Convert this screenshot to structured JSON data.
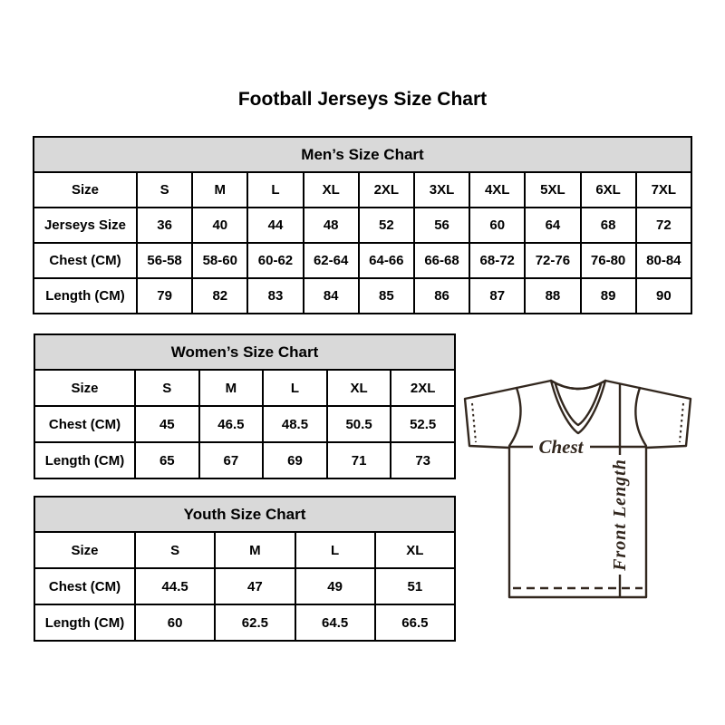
{
  "page": {
    "title": "Football Jerseys Size Chart"
  },
  "tables": [
    {
      "header": "Men’s Size Chart",
      "rows": [
        [
          "Size",
          "S",
          "M",
          "L",
          "XL",
          "2XL",
          "3XL",
          "4XL",
          "5XL",
          "6XL",
          "7XL"
        ],
        [
          "Jerseys Size",
          "36",
          "40",
          "44",
          "48",
          "52",
          "56",
          "60",
          "64",
          "68",
          "72"
        ],
        [
          "Chest (CM)",
          "56-58",
          "58-60",
          "60-62",
          "62-64",
          "64-66",
          "66-68",
          "68-72",
          "72-76",
          "76-80",
          "80-84"
        ],
        [
          "Length (CM)",
          "79",
          "82",
          "83",
          "84",
          "85",
          "86",
          "87",
          "88",
          "89",
          "90"
        ]
      ]
    },
    {
      "header": "Women’s Size Chart",
      "rows": [
        [
          "Size",
          "S",
          "M",
          "L",
          "XL",
          "2XL"
        ],
        [
          "Chest (CM)",
          "45",
          "46.5",
          "48.5",
          "50.5",
          "52.5"
        ],
        [
          "Length (CM)",
          "65",
          "67",
          "69",
          "71",
          "73"
        ]
      ]
    },
    {
      "header": "Youth Size Chart",
      "rows": [
        [
          "Size",
          "S",
          "M",
          "L",
          "XL"
        ],
        [
          "Chest (CM)",
          "44.5",
          "47",
          "49",
          "51"
        ],
        [
          "Length (CM)",
          "60",
          "62.5",
          "64.5",
          "66.5"
        ]
      ]
    }
  ],
  "diagram": {
    "chest_label": "Chest",
    "front_length_label": "Front Length"
  },
  "colors": {
    "table_header_bg": "#d9d9d9",
    "table_border": "#000000",
    "diagram_line": "#32271e"
  }
}
